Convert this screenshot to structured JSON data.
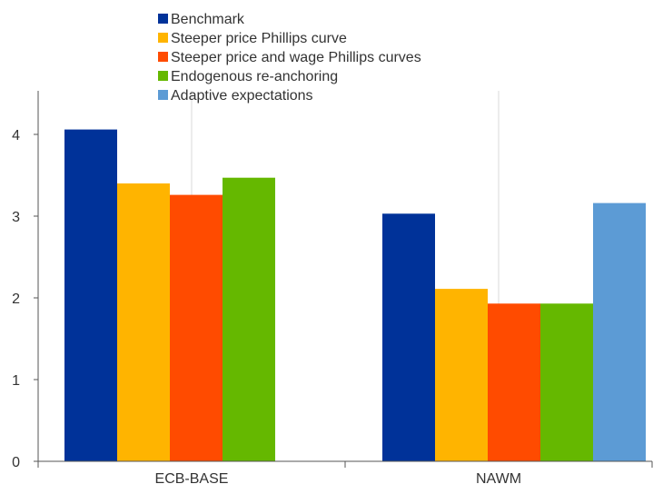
{
  "chart_data": {
    "type": "bar",
    "categories": [
      "ECB-BASE",
      "NAWM"
    ],
    "series": [
      {
        "name": "Benchmark",
        "color": "#003299",
        "values": [
          4.06,
          3.03
        ]
      },
      {
        "name": "Steeper price Phillips curve",
        "color": "#FFB400",
        "values": [
          3.4,
          2.11
        ]
      },
      {
        "name": "Steeper price and wage Phillips curves",
        "color": "#FF4B00",
        "values": [
          3.26,
          1.93
        ]
      },
      {
        "name": "Endogenous re-anchoring",
        "color": "#65B800",
        "values": [
          3.47,
          1.93
        ]
      },
      {
        "name": "Adaptive expectations",
        "color": "#5C9BD5",
        "values": [
          null,
          3.16
        ]
      }
    ],
    "y_ticks": [
      "0",
      "1",
      "2",
      "3",
      "4"
    ],
    "ylim": [
      0,
      4.3
    ],
    "grid": true,
    "legend_position": "top-center"
  }
}
